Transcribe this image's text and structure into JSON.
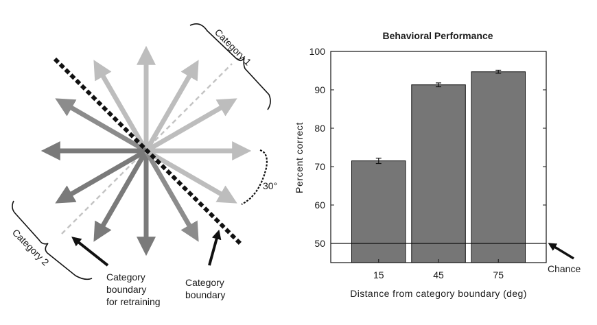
{
  "diagram": {
    "category1_label": "Category 1",
    "category2_label": "Category 2",
    "angle_label": "30°",
    "boundary_label": [
      "Category",
      "boundary"
    ],
    "retraining_label": [
      "Category",
      "boundary",
      "for retraining"
    ],
    "arrow_directions_deg": [
      0,
      30,
      60,
      90,
      120,
      150,
      180,
      210,
      240,
      270,
      300,
      330
    ],
    "category1_directions_deg": [
      330,
      0,
      30,
      60,
      90,
      120
    ],
    "category2_directions_deg": [
      150,
      180,
      210,
      240,
      270,
      300
    ],
    "boundary_angle_deg": 135,
    "retraining_boundary_angle_deg": 45,
    "colors": {
      "category1": "#bdbdbd",
      "category2": "#7a7a7a",
      "near_category2": "#8c8c8c",
      "boundary": "#111111",
      "retraining": "#c4c4c4"
    }
  },
  "chart_data": {
    "type": "bar",
    "title": "Behavioral Performance",
    "xlabel": "Distance from category boundary (deg)",
    "ylabel": "Percent correct",
    "categories": [
      "15",
      "45",
      "75"
    ],
    "values": [
      71.5,
      91.3,
      94.7
    ],
    "errors": [
      0.7,
      0.5,
      0.4
    ],
    "ylim": [
      45,
      100
    ],
    "yticks": [
      50,
      60,
      70,
      80,
      90,
      100
    ],
    "reference_line": {
      "value": 50,
      "label": "Chance"
    },
    "bar_color": "#767676",
    "grid": false,
    "legend": "none"
  }
}
